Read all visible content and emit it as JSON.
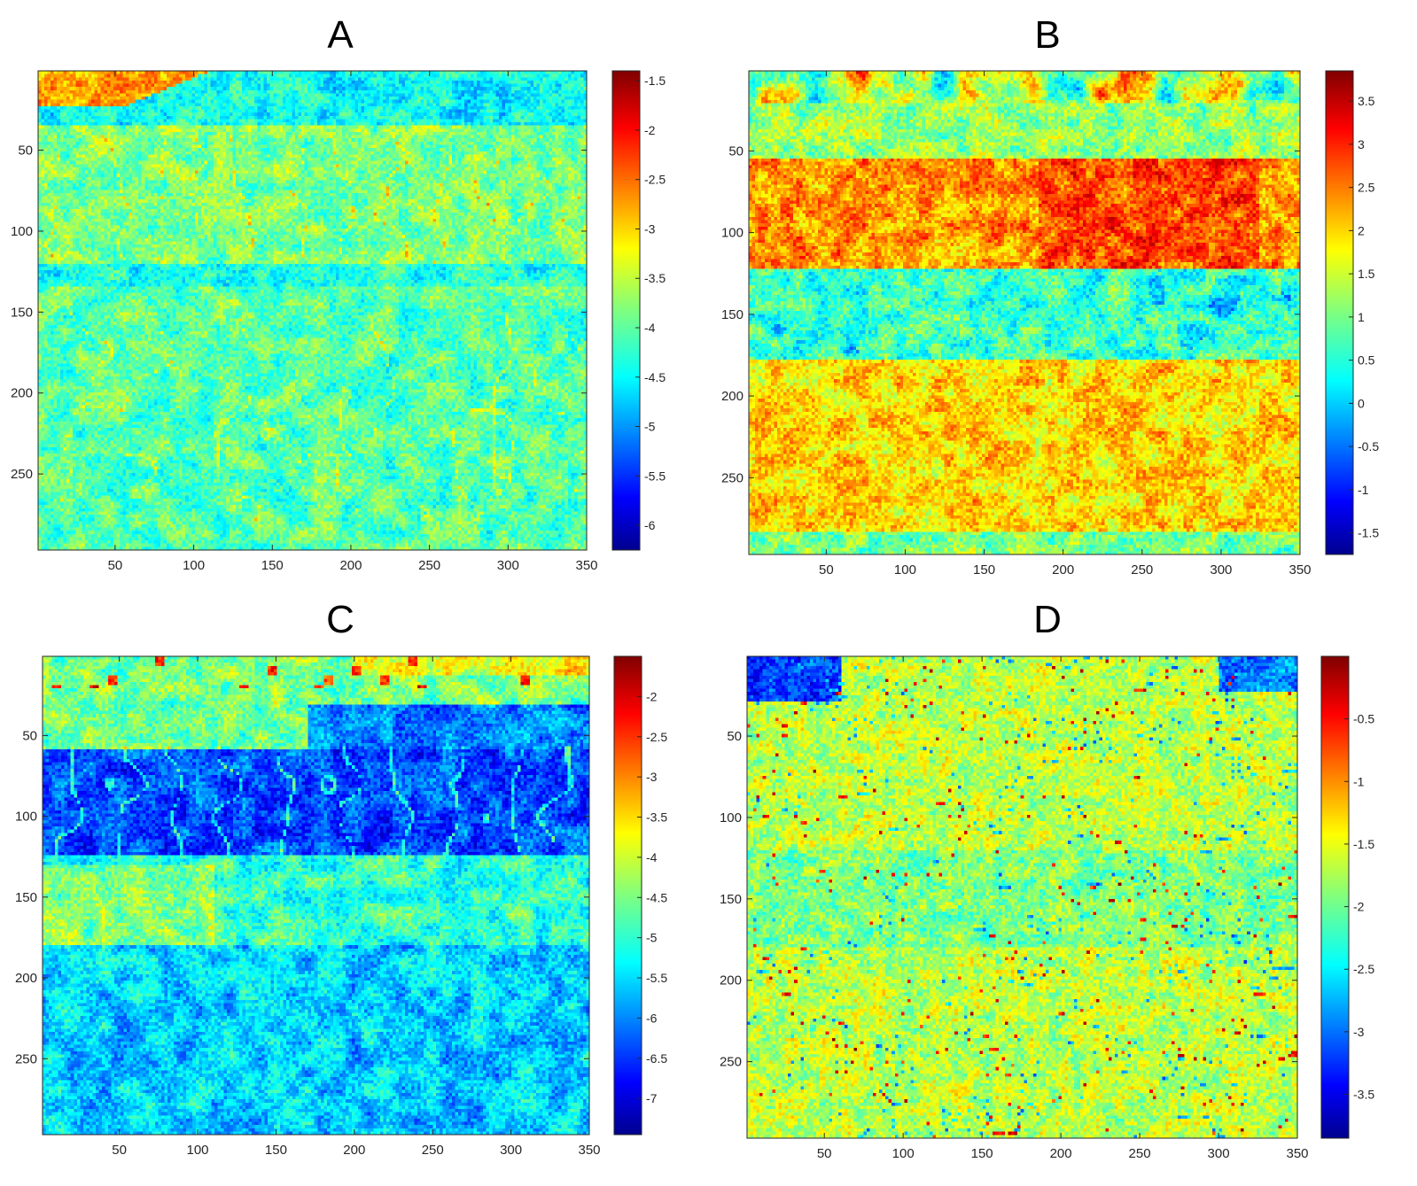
{
  "chart_data": [
    {
      "type": "heatmap",
      "title": "A",
      "xlim": [
        1,
        350
      ],
      "ylim": [
        1,
        297
      ],
      "x_ticks": [
        50,
        100,
        150,
        200,
        250,
        300,
        350
      ],
      "y_ticks": [
        50,
        100,
        150,
        200,
        250
      ],
      "colorbar": {
        "range": [
          -6.25,
          -1.4
        ],
        "ticks": [
          -1.5,
          -2,
          -2.5,
          -3,
          -3.5,
          -4,
          -4.5,
          -5,
          -5.5,
          -6
        ]
      },
      "pattern": "upper rock band (rows ~20-120) mostly green-yellow with yellow fracture lines; orange-yellow saturated region top-left; lower band (rows ~130-297) cyan-green",
      "colormap": "jet"
    },
    {
      "type": "heatmap",
      "title": "B",
      "xlim": [
        1,
        350
      ],
      "ylim": [
        1,
        297
      ],
      "x_ticks": [
        50,
        100,
        150,
        200,
        250,
        300,
        350
      ],
      "y_ticks": [
        50,
        100,
        150,
        200,
        250
      ],
      "colorbar": {
        "range": [
          -1.75,
          3.85
        ],
        "ticks": [
          3.5,
          3,
          2.5,
          2,
          1.5,
          1,
          0.5,
          0,
          -0.5,
          -1,
          -1.5
        ]
      },
      "pattern": "upper rock band (rows ~55-125) orange-red; middle band (rows ~125-175) cyan; lower band (rows ~180-285) yellow-orange",
      "colormap": "jet"
    },
    {
      "type": "heatmap",
      "title": "C",
      "xlim": [
        1,
        350
      ],
      "ylim": [
        1,
        297
      ],
      "x_ticks": [
        50,
        100,
        150,
        200,
        250,
        300,
        350
      ],
      "y_ticks": [
        50,
        100,
        150,
        200,
        250
      ],
      "colorbar": {
        "range": [
          -7.45,
          -1.5
        ],
        "ticks": [
          -2,
          -2.5,
          -3,
          -3.5,
          -4,
          -4.5,
          -5,
          -5.5,
          -6,
          -6.5,
          -7
        ]
      },
      "pattern": "upper rock band (rows ~60-125) deep blue with cyan joints; top strip green-yellow with small red spots; lower band cyan-blue",
      "colormap": "jet"
    },
    {
      "type": "heatmap",
      "title": "D",
      "xlim": [
        1,
        350
      ],
      "ylim": [
        1,
        297
      ],
      "x_ticks": [
        50,
        100,
        150,
        200,
        250,
        300,
        350
      ],
      "y_ticks": [
        50,
        100,
        150,
        200,
        250
      ],
      "colorbar": {
        "range": [
          -3.85,
          0
        ],
        "ticks": [
          -0.5,
          -1,
          -1.5,
          -2,
          -2.5,
          -3,
          -3.5
        ]
      },
      "pattern": "mostly green-yellow with many thin red horizontal streaks; blue patches in top-left and top-right corners",
      "colormap": "jet"
    }
  ]
}
